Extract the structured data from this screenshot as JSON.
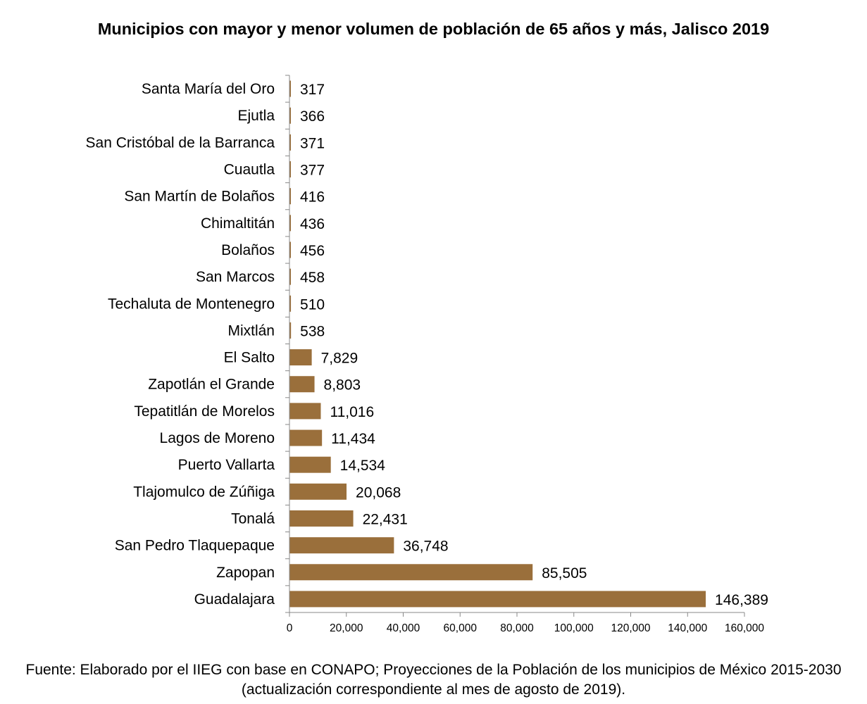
{
  "chart_data": {
    "type": "bar",
    "orientation": "horizontal",
    "title": "Municipios con mayor y menor volumen de población de 65 años y más, Jalisco 2019",
    "categories": [
      "Santa María del Oro",
      "Ejutla",
      "San Cristóbal de la Barranca",
      "Cuautla",
      "San Martín de Bolaños",
      "Chimaltitán",
      "Bolaños",
      "San Marcos",
      "Techaluta de Montenegro",
      "Mixtlán",
      "El Salto",
      "Zapotlán el Grande",
      "Tepatitlán de Morelos",
      "Lagos de Moreno",
      "Puerto Vallarta",
      "Tlajomulco de Zúñiga",
      "Tonalá",
      "San Pedro Tlaquepaque",
      "Zapopan",
      "Guadalajara"
    ],
    "values": [
      317,
      366,
      371,
      377,
      416,
      436,
      456,
      458,
      510,
      538,
      7829,
      8803,
      11016,
      11434,
      14534,
      20068,
      22431,
      36748,
      85505,
      146389
    ],
    "value_labels": [
      "317",
      "366",
      "371",
      "377",
      "416",
      "436",
      "456",
      "458",
      "510",
      "538",
      "7,829",
      "8,803",
      "11,016",
      "11,434",
      "14,534",
      "20,068",
      "22,431",
      "36,748",
      "85,505",
      "146,389"
    ],
    "xlim": [
      0,
      160000
    ],
    "xticks": [
      0,
      20000,
      40000,
      60000,
      80000,
      100000,
      120000,
      140000,
      160000
    ],
    "xtick_labels": [
      "0",
      "20,000",
      "40,000",
      "60,000",
      "80,000",
      "100,000",
      "120,000",
      "140,000",
      "160,000"
    ],
    "xlabel": "",
    "ylabel": "",
    "bar_color": "#9A6F3B",
    "grid": false,
    "legend": "none"
  },
  "source": "Fuente: Elaborado por el IIEG con base en CONAPO; Proyecciones de la Población de los municipios de México 2015-2030 (actualización correspondiente al mes de agosto de 2019)."
}
